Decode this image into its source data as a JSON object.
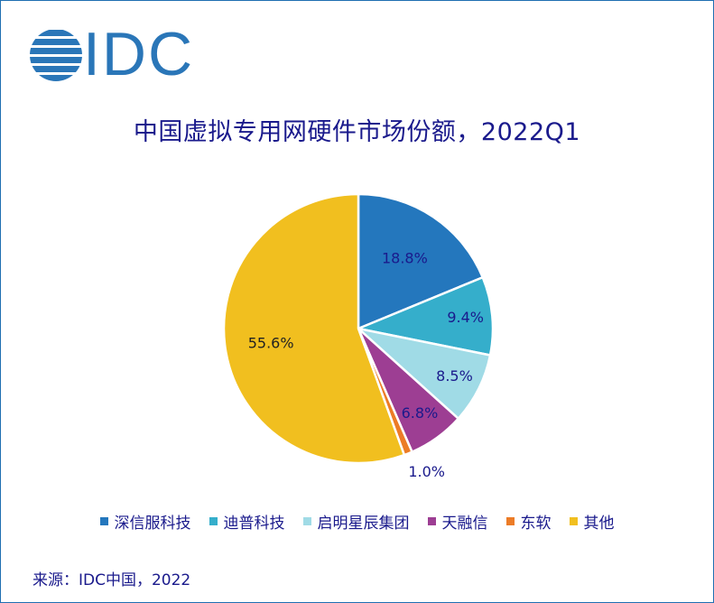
{
  "logo": {
    "text": "IDC"
  },
  "chart_data": {
    "type": "pie",
    "title": "中国虚拟专用网硬件市场份额，2022Q1",
    "categories": [
      "深信服科技",
      "迪普科技",
      "启明星辰集团",
      "天融信",
      "东软",
      "其他"
    ],
    "values": [
      18.8,
      9.4,
      8.5,
      6.8,
      1.0,
      55.6
    ],
    "data_labels": [
      "18.8%",
      "9.4%",
      "8.5%",
      "6.8%",
      "1.0%",
      "55.6%"
    ],
    "colors": [
      "#2477bd",
      "#35aecb",
      "#a0dbe6",
      "#9d3e93",
      "#ec7c27",
      "#f1bf1f"
    ],
    "legend_position": "bottom"
  },
  "source": "来源：IDC中国，2022"
}
